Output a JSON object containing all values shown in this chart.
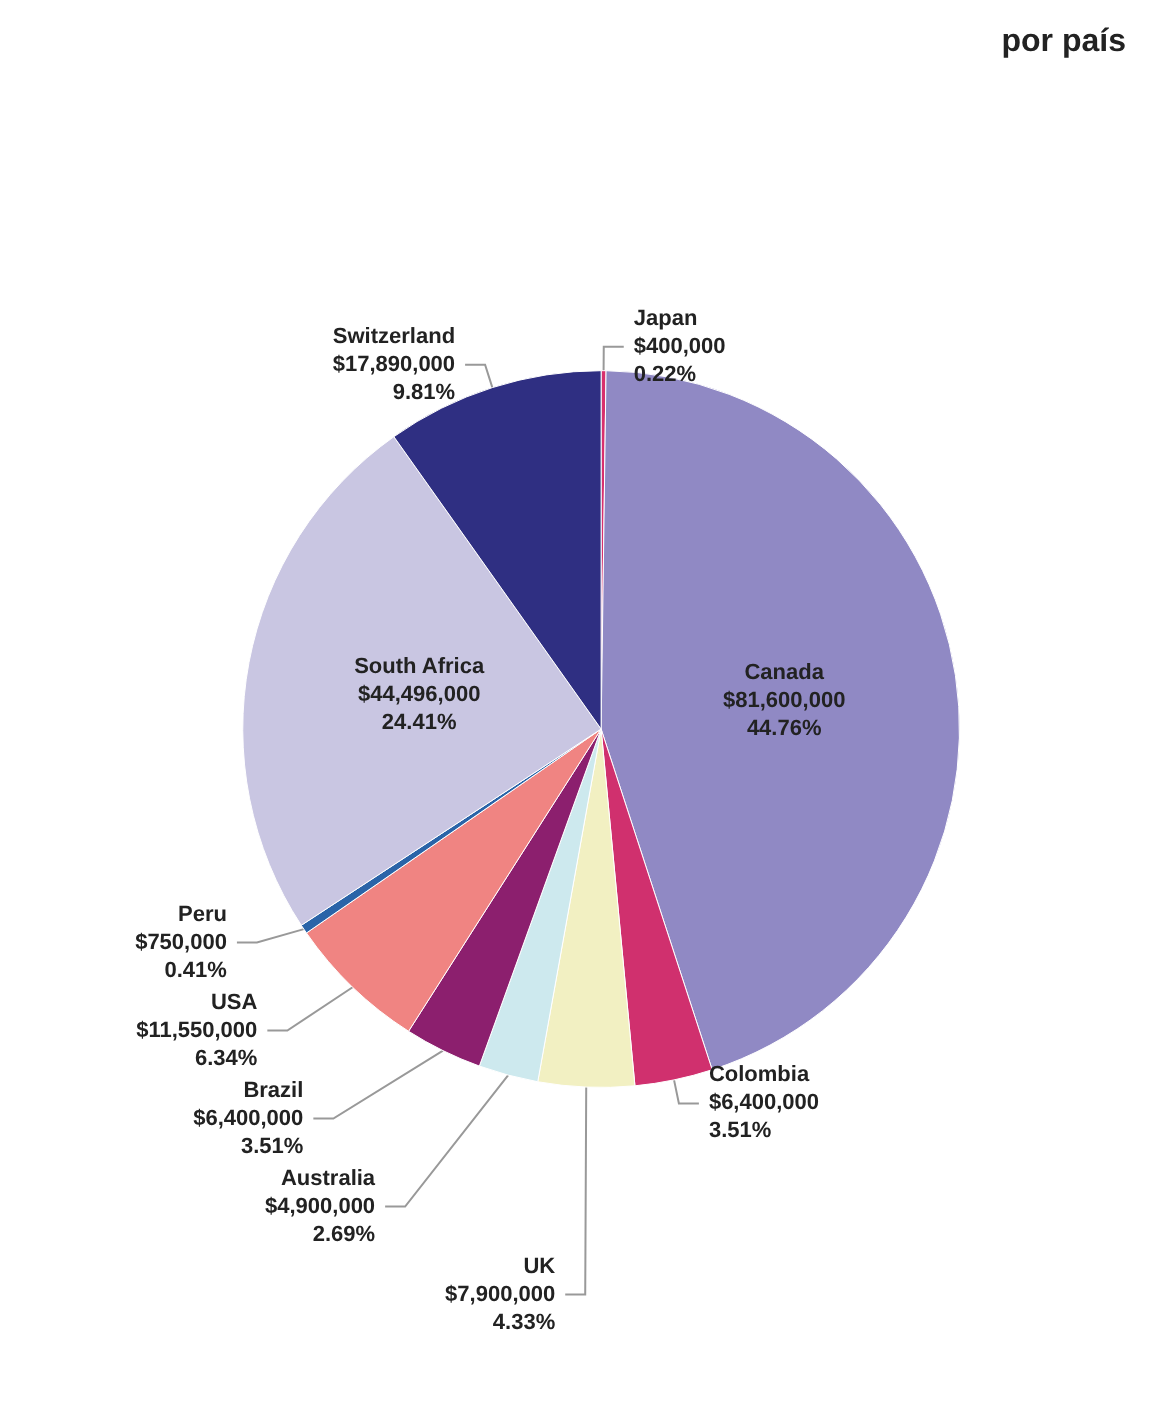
{
  "chart_data": {
    "type": "pie",
    "title": "por país",
    "categories": [
      "Japan",
      "Canada",
      "Colombia",
      "UK",
      "Australia",
      "Brazil",
      "USA",
      "Peru",
      "South Africa",
      "Switzerland"
    ],
    "values": [
      400000,
      81600000,
      6400000,
      7900000,
      4900000,
      6400000,
      11550000,
      750000,
      44496000,
      17890000
    ],
    "value_labels": [
      "$400,000\n0.22%",
      "$81,600,000\n44.76%",
      "$6,400,000\n3.51%",
      "$7,900,000\n4.33%",
      "$4,900,000\n2.69%",
      "$6,400,000\n3.51%",
      "$11,550,000\n6.34%",
      "$750,000\n0.41%",
      "$44,496,000\n24.41%",
      "$17,890,000\n9.81%"
    ],
    "colors": [
      "#d8306e",
      "#9089c4",
      "#d0306e",
      "#f2f0c2",
      "#cde9ee",
      "#8c1f6e",
      "#f08482",
      "#2a64a8",
      "#c9c6e2",
      "#2f2f82"
    ],
    "legend": false
  }
}
